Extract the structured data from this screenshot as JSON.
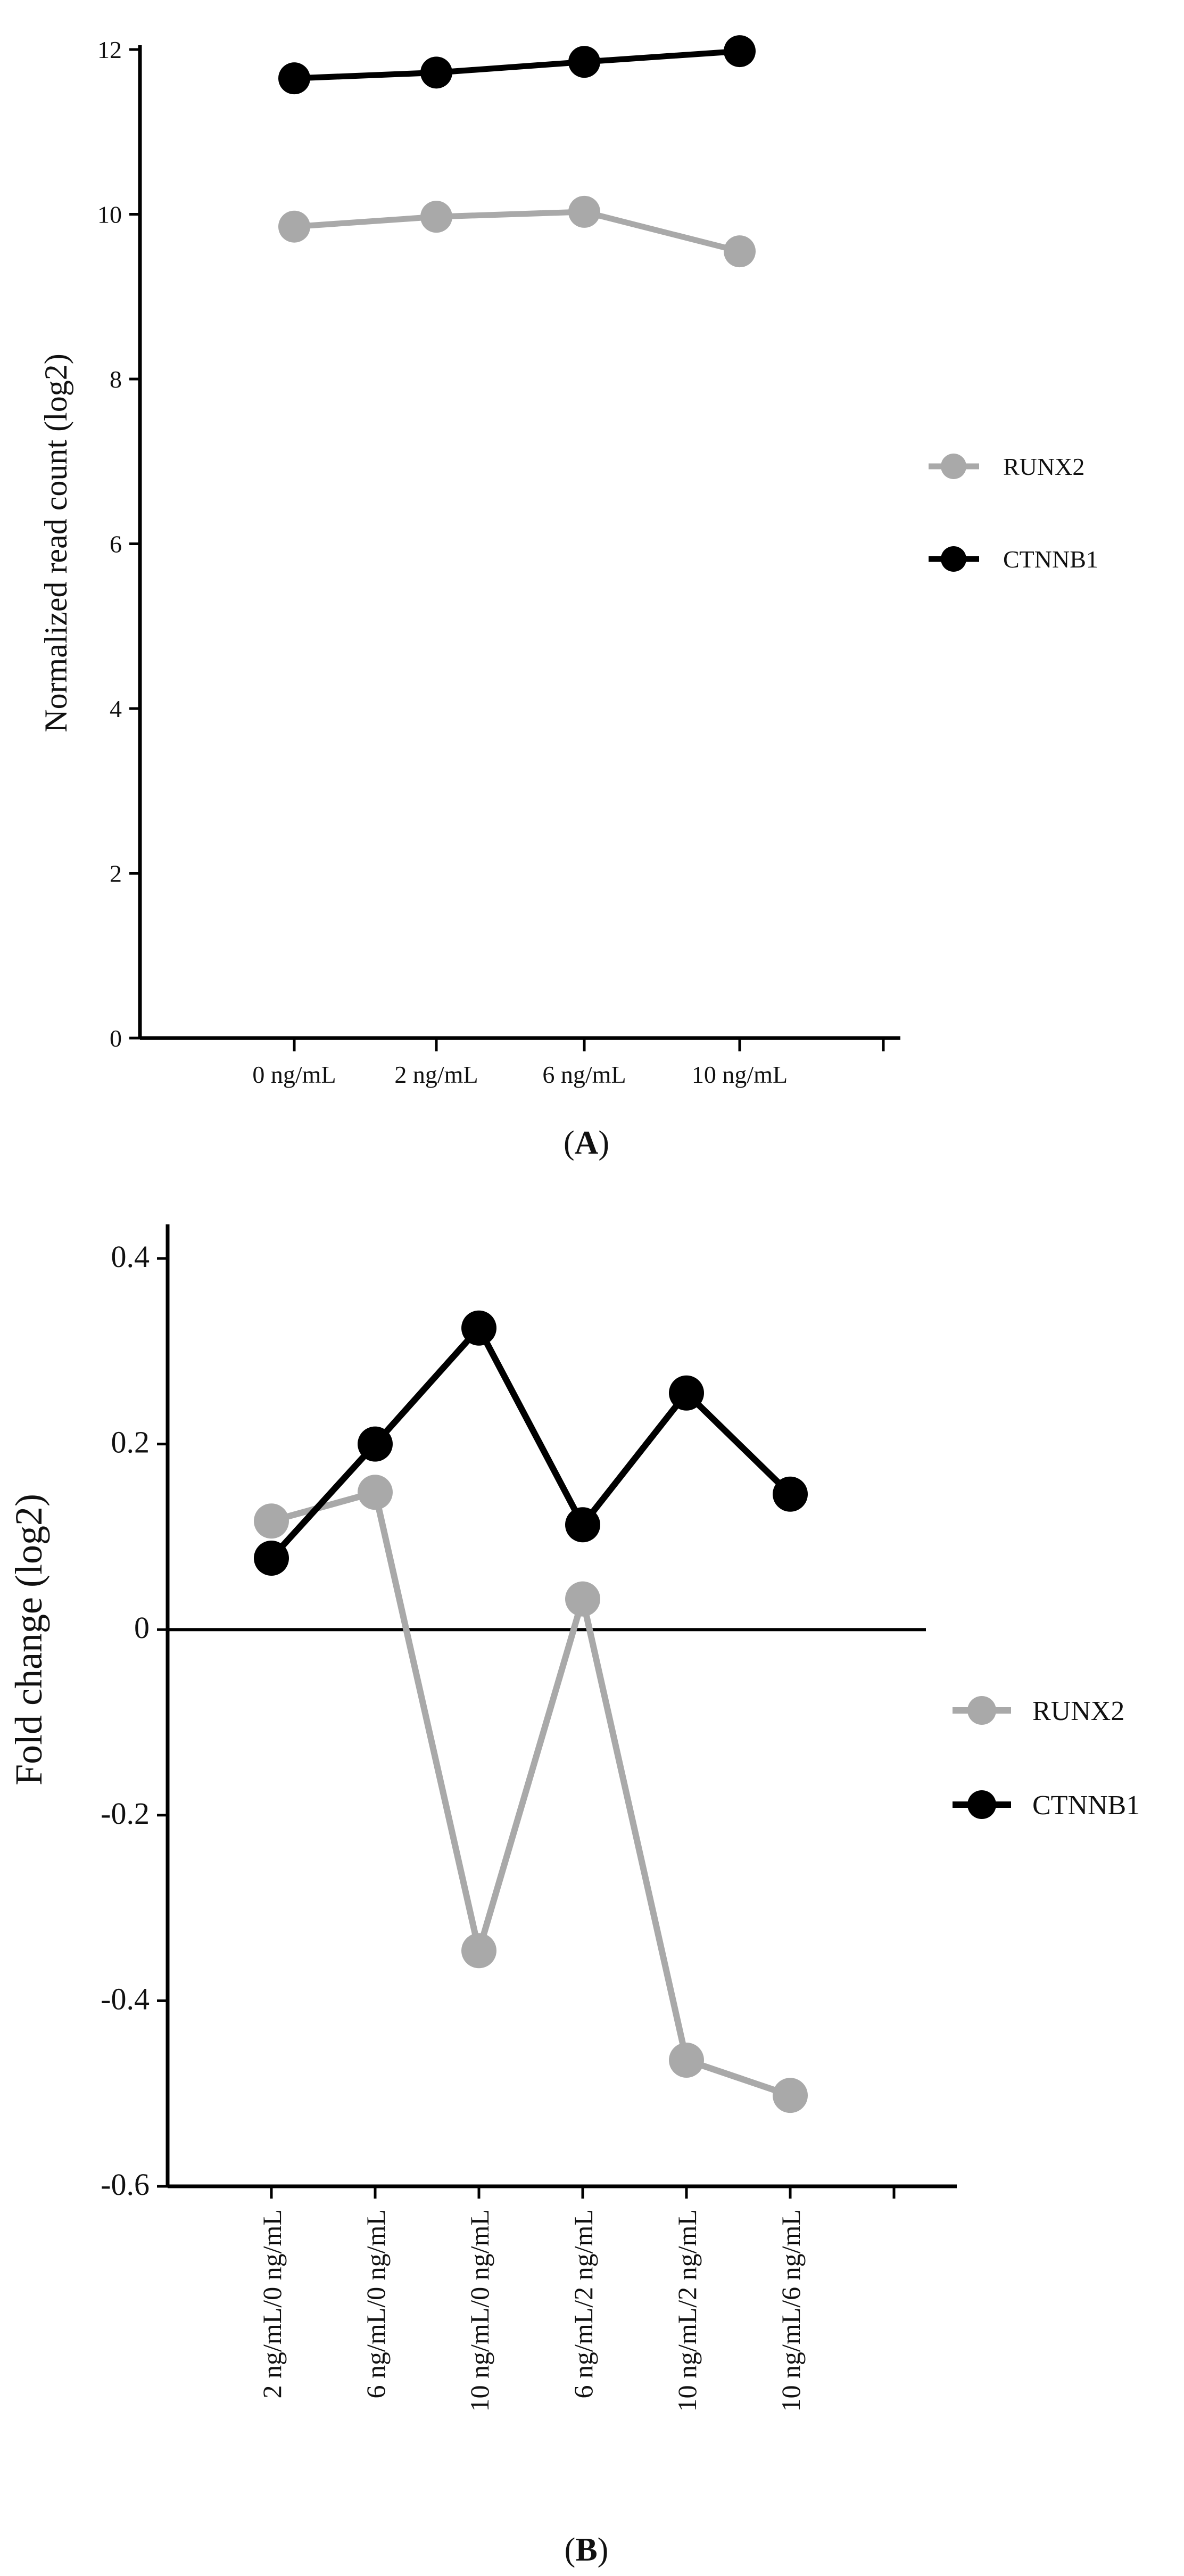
{
  "chart_data": [
    {
      "type": "line",
      "panel": "A",
      "title": "",
      "xlabel": "",
      "ylabel": "Normalized read count (log2)",
      "ylim": [
        0,
        12
      ],
      "yticks": [
        "0",
        "2",
        "4",
        "6",
        "8",
        "10",
        "12"
      ],
      "categories": [
        "0 ng/mL",
        "2 ng/mL",
        "6 ng/mL",
        "10 ng/mL"
      ],
      "series": [
        {
          "name": "RUNX2",
          "color": "#a9a9a9",
          "values": [
            9.85,
            9.97,
            10.03,
            9.55
          ]
        },
        {
          "name": "CTNNB1",
          "color": "#000000",
          "values": [
            11.65,
            11.72,
            11.85,
            11.98
          ]
        }
      ],
      "legend_position": "right",
      "grid": false
    },
    {
      "type": "line",
      "panel": "B",
      "title": "",
      "xlabel": "",
      "ylabel": "Fold change (log2)",
      "ylim": [
        -0.6,
        0.4
      ],
      "yticks": [
        "-0.6",
        "-0.4",
        "-0.2",
        "0",
        "0.2",
        "0.4"
      ],
      "categories": [
        "2 ng/mL/0 ng/mL",
        "6 ng/mL/0 ng/mL",
        "10 ng/mL/0 ng/mL",
        "6 ng/mL/2 ng/mL",
        "10 ng/mL/2 ng/mL",
        "10 ng/mL/6 ng/mL"
      ],
      "series": [
        {
          "name": "RUNX2",
          "color": "#a9a9a9",
          "values": [
            0.117,
            0.148,
            -0.346,
            0.033,
            -0.464,
            -0.502
          ]
        },
        {
          "name": "CTNNB1",
          "color": "#000000",
          "values": [
            0.077,
            0.2,
            0.325,
            0.113,
            0.255,
            0.146
          ]
        }
      ],
      "legend_position": "right",
      "grid": false
    }
  ],
  "panel_labels": {
    "a": {
      "open": "(",
      "letter": "A",
      "close": ")"
    },
    "b": {
      "open": "(",
      "letter": "B",
      "close": ")"
    }
  }
}
